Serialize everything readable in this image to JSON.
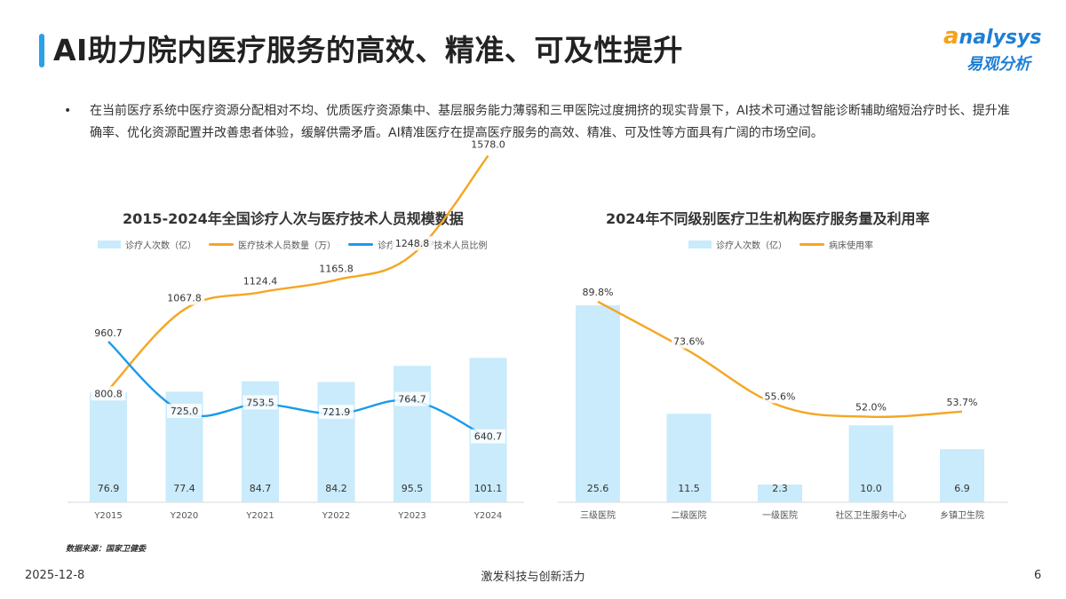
{
  "page": {
    "title": "AI助力院内医疗服务的高效、精准、可及性提升",
    "bullet": "•",
    "intro": "在当前医疗系统中医疗资源分配相对不均、优质医疗资源集中、基层服务能力薄弱和三甲医院过度拥挤的现实背景下，AI技术可通过智能诊断辅助缩短治疗时长、提升准确率、优化资源配置并改善患者体验，缓解供需矛盾。AI精准医疗在提高医疗服务的高效、精准、可及性等方面具有广阔的市场空间。",
    "logo_en_a": "a",
    "logo_en_rest": "nalysys",
    "logo_cn": "易观分析",
    "source": "数据来源：国家卫健委",
    "date": "2025-12-8",
    "slogan": "激发科技与创新活力",
    "page_number": "6"
  },
  "colors": {
    "bar": "#c9ebfb",
    "orange": "#f5a623",
    "blue": "#1a9bea",
    "title_bar": "#2aa0e6"
  },
  "chart_data": [
    {
      "type": "bar",
      "title": "2015-2024年全国诊疗人次与医疗技术人员规模数据",
      "categories": [
        "Y2015",
        "Y2020",
        "Y2021",
        "Y2022",
        "Y2023",
        "Y2024"
      ],
      "series": [
        {
          "name": "诊疗人次数（亿）",
          "type": "bar",
          "values": [
            76.9,
            77.4,
            84.7,
            84.2,
            95.5,
            101.1
          ],
          "labels": [
            "76.9",
            "77.4",
            "84.7",
            "84.2",
            "95.5",
            "101.1"
          ]
        },
        {
          "name": "医疗技术人员数量（万）",
          "type": "line",
          "values": [
            800.8,
            1067.8,
            1124.4,
            1165.8,
            1248.8,
            1578.0
          ],
          "labels": [
            "800.8",
            "1067.8",
            "1124.4",
            "1165.8",
            "1248.8",
            "1578.0"
          ]
        },
        {
          "name": "诊疗人次/医疗技术人员比例",
          "type": "line",
          "values": [
            960.7,
            725.0,
            753.5,
            721.9,
            764.7,
            640.7
          ],
          "labels": [
            "960.7",
            "725.0",
            "753.5",
            "721.9",
            "764.7",
            "640.7"
          ]
        }
      ],
      "legend": "top",
      "grid": false
    },
    {
      "type": "bar",
      "title": "2024年不同级别医疗卫生机构医疗服务量及利用率",
      "categories": [
        "三级医院",
        "二级医院",
        "一级医院",
        "社区卫生服务中心",
        "乡镇卫生院"
      ],
      "series": [
        {
          "name": "诊疗人次数（亿）",
          "type": "bar",
          "values": [
            25.6,
            11.5,
            2.3,
            10.0,
            6.9
          ],
          "labels": [
            "25.6",
            "11.5",
            "2.3",
            "10.0",
            "6.9"
          ]
        },
        {
          "name": "病床使用率",
          "type": "line",
          "values": [
            89.8,
            73.6,
            55.6,
            52.0,
            53.7
          ],
          "labels": [
            "89.8%",
            "73.6%",
            "55.6%",
            "52.0%",
            "53.7%"
          ]
        }
      ],
      "legend": "top",
      "grid": false
    }
  ]
}
